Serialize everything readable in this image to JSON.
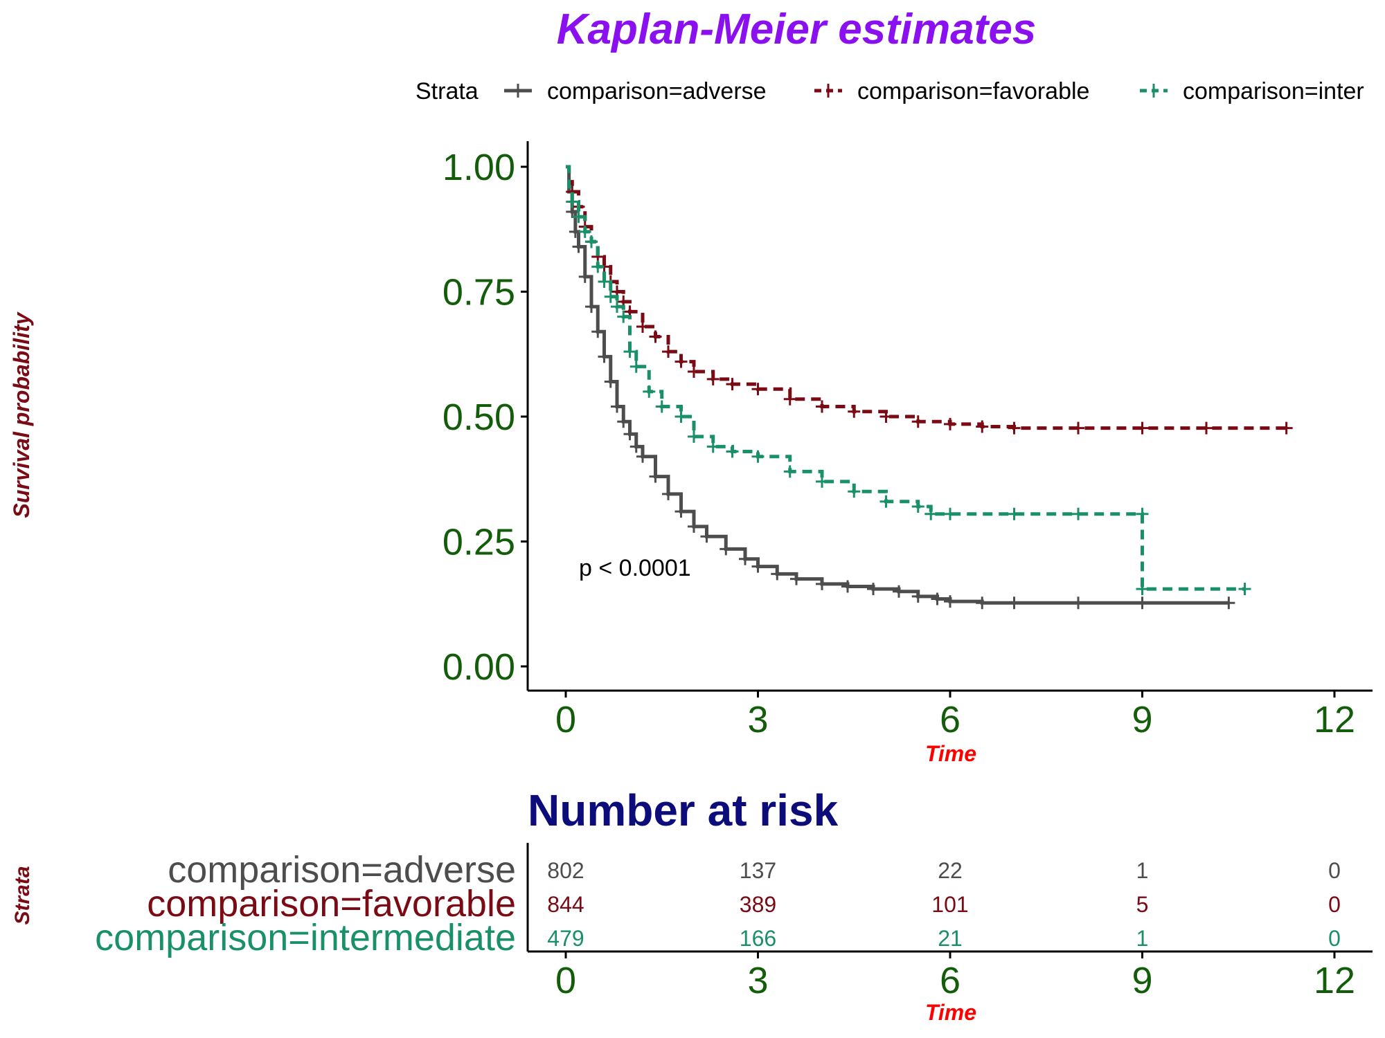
{
  "chart_data": [
    {
      "type": "line",
      "subtype": "kaplan-meier",
      "title": "Kaplan-Meier estimates",
      "xlabel": "Time",
      "ylabel": "Survival probability",
      "xlim": [
        0,
        12
      ],
      "ylim": [
        0,
        1
      ],
      "x_ticks": [
        "0",
        "3",
        "6",
        "9",
        "12"
      ],
      "y_ticks": [
        "0.00",
        "0.25",
        "0.50",
        "0.75",
        "1.00"
      ],
      "grid": false,
      "legend": {
        "title": "Strata",
        "placement": "top",
        "entries": [
          "comparison=adverse",
          "comparison=favorable",
          "comparison=intermediate"
        ],
        "visible_entries": [
          "comparison=adverse",
          "comparison=favorable",
          "comparison=inter"
        ]
      },
      "annotation": "p < 0.0001",
      "series": [
        {
          "name": "comparison=adverse",
          "color": "#4d4d4d",
          "dash": "solid",
          "x": [
            0,
            0.05,
            0.1,
            0.15,
            0.2,
            0.3,
            0.4,
            0.5,
            0.6,
            0.7,
            0.8,
            0.9,
            1.0,
            1.1,
            1.2,
            1.4,
            1.6,
            1.8,
            2.0,
            2.2,
            2.5,
            2.8,
            3.0,
            3.3,
            3.6,
            4.0,
            4.4,
            4.8,
            5.2,
            5.5,
            5.8,
            6.0,
            6.5,
            7.0,
            8.0,
            9.0,
            10.35
          ],
          "y": [
            1.0,
            0.95,
            0.91,
            0.87,
            0.84,
            0.78,
            0.72,
            0.67,
            0.62,
            0.57,
            0.52,
            0.49,
            0.465,
            0.44,
            0.42,
            0.38,
            0.345,
            0.31,
            0.28,
            0.26,
            0.235,
            0.215,
            0.2,
            0.185,
            0.175,
            0.165,
            0.16,
            0.155,
            0.15,
            0.14,
            0.135,
            0.13,
            0.127,
            0.127,
            0.127,
            0.127,
            0.127
          ]
        },
        {
          "name": "comparison=favorable",
          "color": "#7a0a14",
          "dash": "dashed",
          "x": [
            0,
            0.05,
            0.1,
            0.2,
            0.3,
            0.4,
            0.5,
            0.6,
            0.7,
            0.8,
            0.9,
            1.0,
            1.2,
            1.4,
            1.6,
            1.8,
            2.0,
            2.3,
            2.6,
            3.0,
            3.5,
            4.0,
            4.5,
            5.0,
            5.5,
            6.0,
            6.5,
            7.0,
            8.0,
            9.0,
            10.0,
            11.25
          ],
          "y": [
            1.0,
            0.97,
            0.95,
            0.92,
            0.88,
            0.85,
            0.82,
            0.8,
            0.77,
            0.75,
            0.73,
            0.71,
            0.68,
            0.66,
            0.63,
            0.61,
            0.59,
            0.575,
            0.565,
            0.555,
            0.535,
            0.52,
            0.51,
            0.5,
            0.49,
            0.485,
            0.48,
            0.477,
            0.477,
            0.477,
            0.477,
            0.477
          ]
        },
        {
          "name": "comparison=intermediate",
          "color": "#1a9068",
          "dash": "dashed",
          "x": [
            0,
            0.05,
            0.1,
            0.2,
            0.3,
            0.4,
            0.5,
            0.6,
            0.7,
            0.8,
            0.9,
            1.0,
            1.1,
            1.3,
            1.5,
            1.8,
            2.0,
            2.3,
            2.6,
            3.0,
            3.5,
            4.0,
            4.5,
            5.0,
            5.5,
            5.7,
            6.0,
            7.0,
            8.0,
            9.0,
            9.0,
            10.6
          ],
          "y": [
            1.0,
            0.96,
            0.93,
            0.9,
            0.87,
            0.85,
            0.8,
            0.77,
            0.74,
            0.72,
            0.7,
            0.63,
            0.6,
            0.55,
            0.52,
            0.5,
            0.46,
            0.44,
            0.43,
            0.42,
            0.39,
            0.37,
            0.35,
            0.33,
            0.32,
            0.305,
            0.305,
            0.305,
            0.305,
            0.305,
            0.155,
            0.155
          ]
        }
      ]
    },
    {
      "type": "table",
      "title": "Number at risk",
      "xlabel": "Time",
      "ylabel": "Strata",
      "xlim": [
        0,
        12
      ],
      "x_ticks": [
        "0",
        "3",
        "6",
        "9",
        "12"
      ],
      "rows": [
        {
          "label": "comparison=adverse",
          "color": "#4d4d4d",
          "values": [
            "802",
            "137",
            "22",
            "1",
            "0"
          ]
        },
        {
          "label": "comparison=favorable",
          "color": "#7a0a14",
          "values": [
            "844",
            "389",
            "101",
            "5",
            "0"
          ]
        },
        {
          "label": "comparison=intermediate",
          "color": "#1a9068",
          "values": [
            "479",
            "166",
            "21",
            "1",
            "0"
          ]
        }
      ]
    }
  ],
  "colors": {
    "title": "#8b10f0",
    "ylabel": "#7a0a14",
    "xlabel": "#ff0000",
    "ticks": "#135c0a",
    "risk_title": "#0c0c7a",
    "axis": "#000000"
  }
}
